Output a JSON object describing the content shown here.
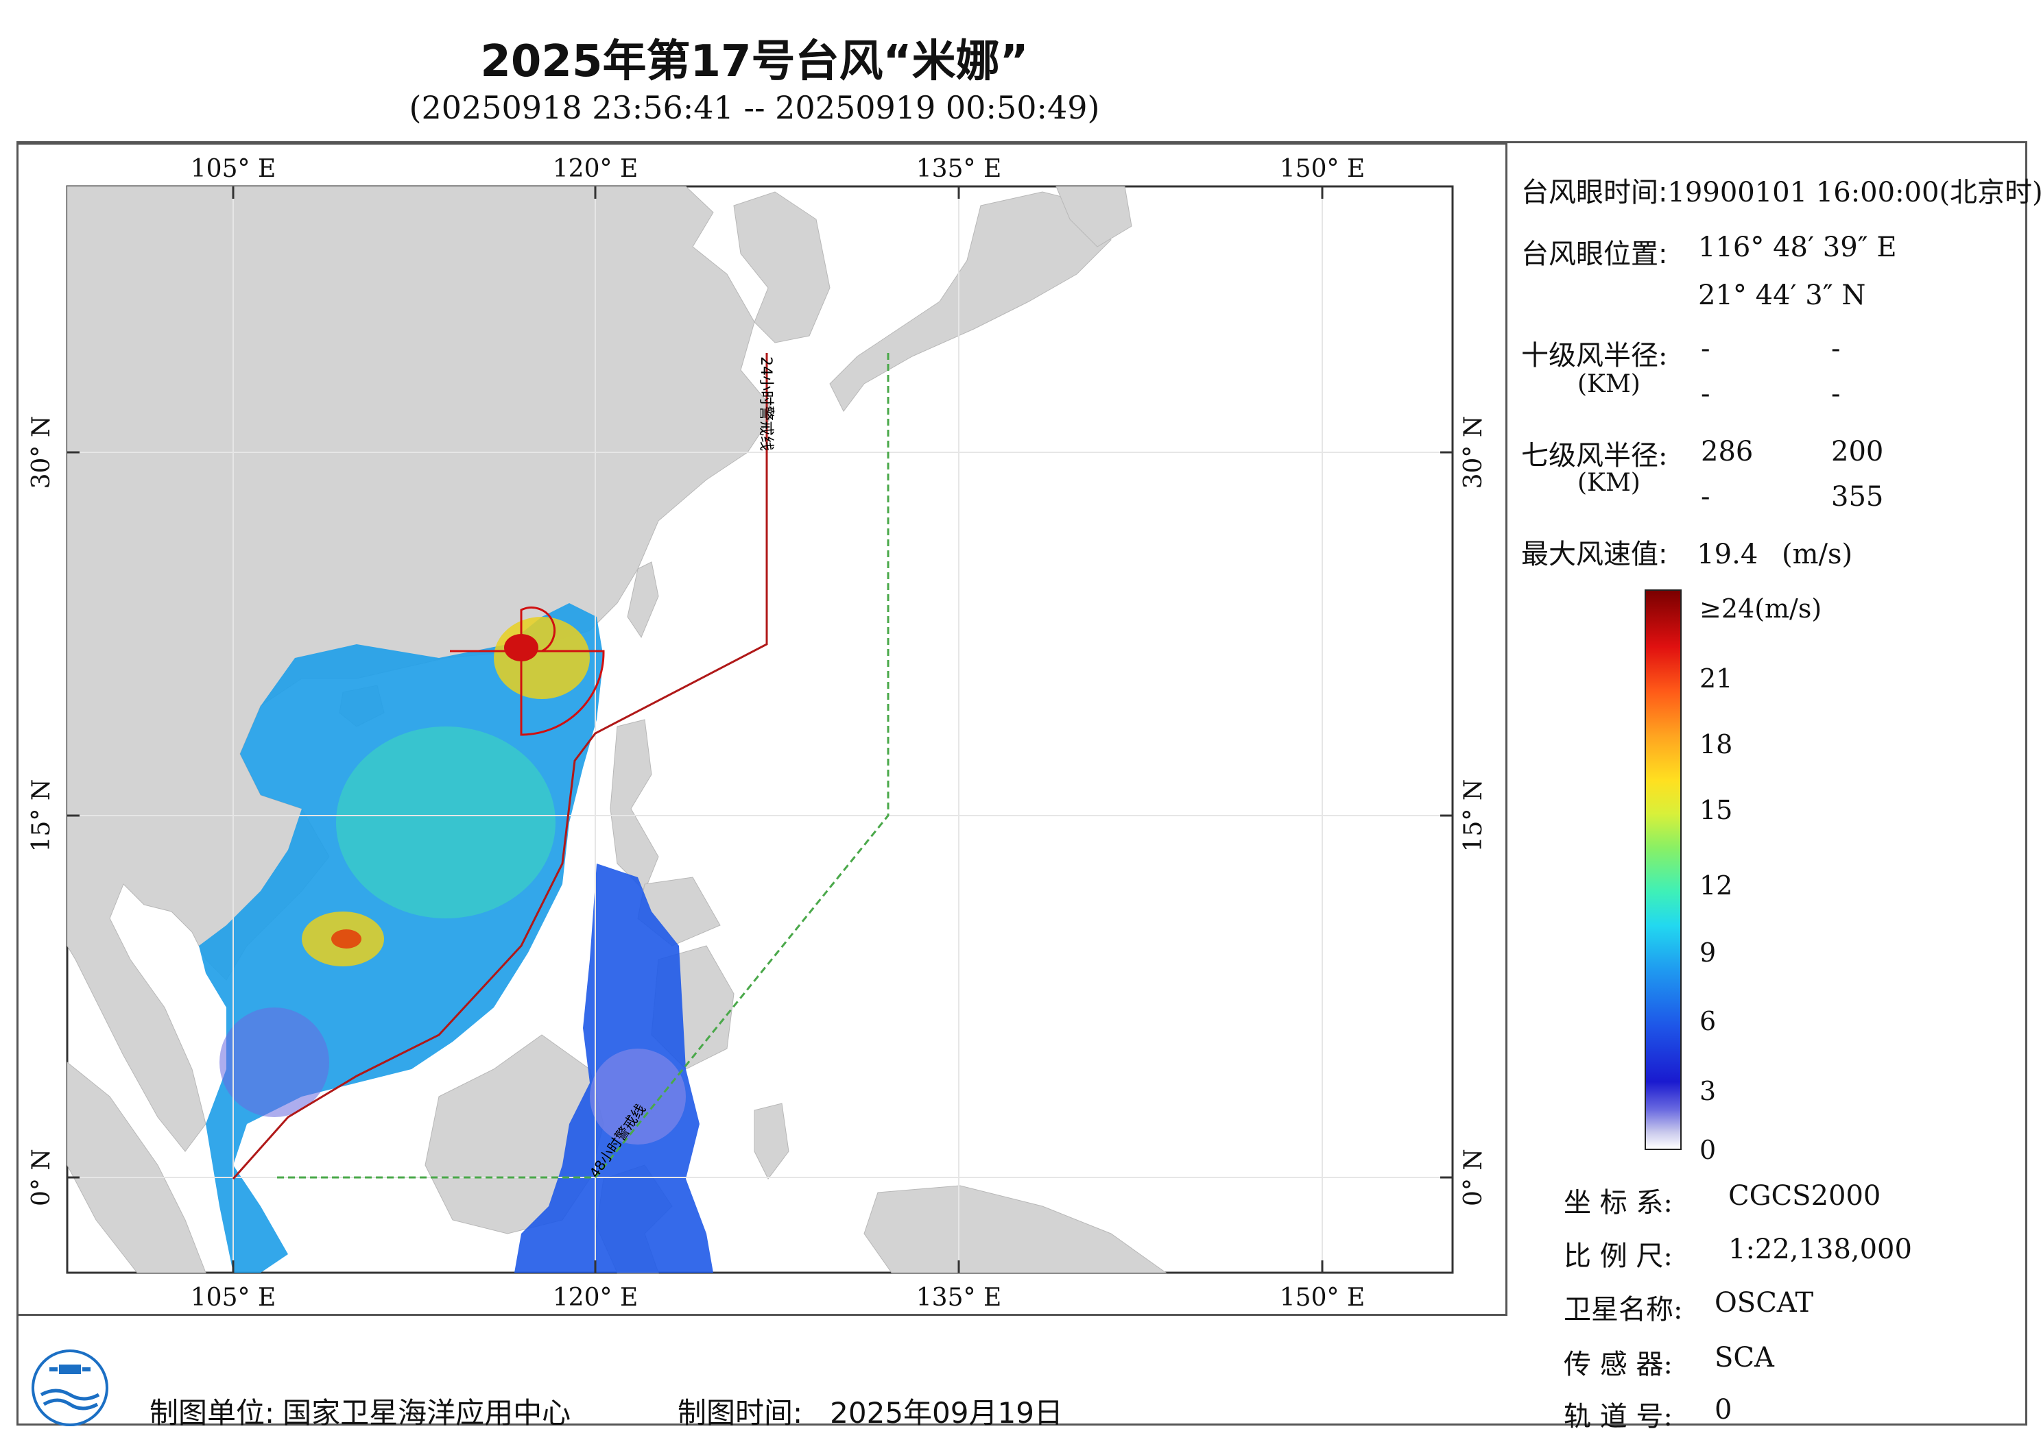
{
  "title": "2025年第17号台风“米娜”",
  "subtitle": "(20250918 23:56:41 -- 20250919 00:50:49)",
  "map": {
    "top_axis_labels": [
      "105° E",
      "120° E",
      "135° E",
      "150° E"
    ],
    "bottom_axis_labels": [
      "105° E",
      "120° E",
      "135° E",
      "150° E"
    ],
    "left_axis_labels": [
      "30° N",
      "15° N",
      "0° N"
    ],
    "right_axis_labels": [
      "30° N",
      "15° N",
      "0° N"
    ],
    "warning_line_24h_label": "24小时警戒线",
    "warning_line_48h_label": "48小时警戒线",
    "colors": {
      "land": "#d3d3d3",
      "ocean": "#ffffff",
      "line_24h": "#b01818",
      "line_48h": "#4aa84a",
      "radius_box": "#d01010"
    }
  },
  "info": {
    "eye_time_label": "台风眼时间:",
    "eye_time_value": "19900101 16:00:00(北京时)",
    "eye_pos_label": "台风眼位置:",
    "eye_lon": "116° 48′ 39″ E",
    "eye_lat": "21° 44′ 3″ N",
    "r10_label": "十级风半径:",
    "r10_unit": "(KM)",
    "r10_values": [
      "-",
      "-",
      "-",
      "-"
    ],
    "r7_label": "七级风半径:",
    "r7_unit": "(KM)",
    "r7_values": [
      "286",
      "200",
      "-",
      "355"
    ],
    "max_wind_label": "最大风速值:",
    "max_wind_value": "19.4",
    "max_wind_unit": "(m/s)"
  },
  "legend": {
    "ticks": [
      "≥24(m/s)",
      "21",
      "18",
      "15",
      "12",
      "9",
      "6",
      "3",
      "0"
    ],
    "min": 0,
    "max": 24
  },
  "meta": {
    "crs_label": "坐 标 系:",
    "crs_value": "CGCS2000",
    "scale_label": "比 例 尺:",
    "scale_value": "1:22,138,000",
    "satellite_label": "卫星名称:",
    "satellite_value": "OSCAT",
    "sensor_label": "传 感 器:",
    "sensor_value": "SCA",
    "orbit_label": "轨 道 号:",
    "orbit_value": "0"
  },
  "footer": {
    "producer_label": "制图单位:",
    "producer_value": "国家卫星海洋应用中心",
    "date_label": "制图时间:",
    "date_value": "2025年09月19日"
  }
}
